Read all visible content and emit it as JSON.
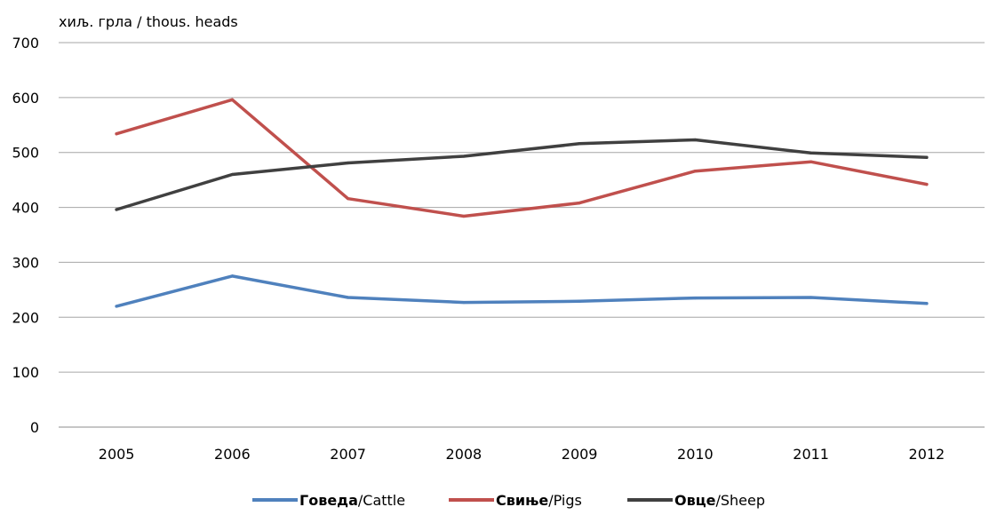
{
  "chart_data": {
    "type": "line",
    "unit_label": "хиљ. грла / thous. heads",
    "categories": [
      "2005",
      "2006",
      "2007",
      "2008",
      "2009",
      "2010",
      "2011",
      "2012"
    ],
    "ylim": [
      0,
      700
    ],
    "yticks": [
      0,
      100,
      200,
      300,
      400,
      500,
      600,
      700
    ],
    "grid": true,
    "legend_position": "bottom",
    "series": [
      {
        "name_cyr": "Говеда",
        "name_en": "Cattle",
        "color": "#4f81bd",
        "values": [
          220,
          275,
          236,
          227,
          229,
          235,
          236,
          225
        ]
      },
      {
        "name_cyr": "Свиње",
        "name_en": "Pigs",
        "color": "#c0504d",
        "values": [
          534,
          596,
          416,
          384,
          408,
          466,
          483,
          442
        ]
      },
      {
        "name_cyr": "Овце",
        "name_en": "Sheep",
        "color": "#404040",
        "values": [
          396,
          460,
          481,
          493,
          516,
          523,
          499,
          491
        ]
      }
    ]
  }
}
